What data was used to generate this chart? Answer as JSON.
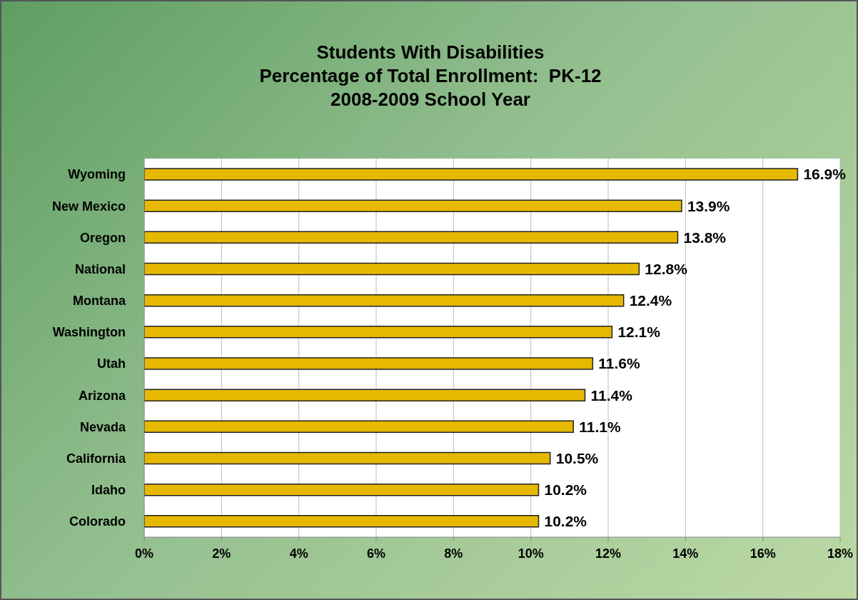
{
  "chart_data": {
    "type": "bar",
    "orientation": "horizontal",
    "title": "Students With Disabilities\nPercentage of Total Enrollment:  PK-12\n2008-2009 School Year",
    "categories": [
      "Wyoming",
      "New Mexico",
      "Oregon",
      "National",
      "Montana",
      "Washington",
      "Utah",
      "Arizona",
      "Nevada",
      "California",
      "Idaho",
      "Colorado"
    ],
    "values": [
      16.9,
      13.9,
      13.8,
      12.8,
      12.4,
      12.1,
      11.6,
      11.4,
      11.1,
      10.5,
      10.2,
      10.2
    ],
    "value_labels": [
      "16.9%",
      "13.9%",
      "13.8%",
      "12.8%",
      "12.4%",
      "12.1%",
      "11.6%",
      "11.4%",
      "11.1%",
      "10.5%",
      "10.2%",
      "10.2%"
    ],
    "color": "#e6b800",
    "xlim": [
      0,
      18
    ],
    "xticks": [
      {
        "value": 0,
        "label": "0%"
      },
      {
        "value": 2,
        "label": "2%"
      },
      {
        "value": 4,
        "label": "4%"
      },
      {
        "value": 6,
        "label": "6%"
      },
      {
        "value": 8,
        "label": "8%"
      },
      {
        "value": 10,
        "label": "10%"
      },
      {
        "value": 12,
        "label": "12%"
      },
      {
        "value": 14,
        "label": "14%"
      },
      {
        "value": 16,
        "label": "16%"
      },
      {
        "value": 18,
        "label": "18%"
      }
    ],
    "grid": "x",
    "legend": false
  }
}
